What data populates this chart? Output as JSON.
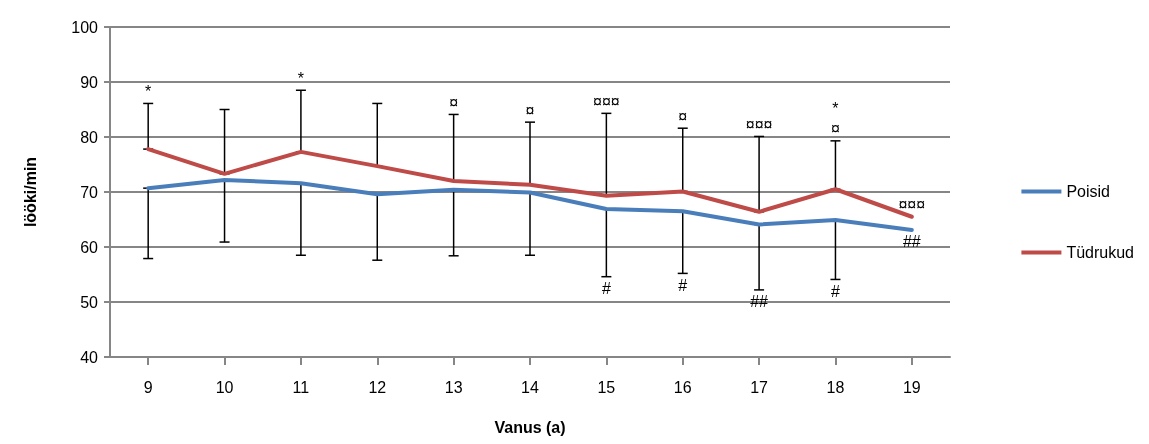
{
  "chart_data": {
    "type": "line",
    "xlabel": "Vanus (a)",
    "ylabel": "lööki/min",
    "categories": [
      "9",
      "10",
      "11",
      "12",
      "13",
      "14",
      "15",
      "16",
      "17",
      "18",
      "19"
    ],
    "series": [
      {
        "name": "Poisid",
        "color": "#4a7ebb",
        "values": [
          70.7,
          72.2,
          71.6,
          69.6,
          70.4,
          69.9,
          66.9,
          66.5,
          64.1,
          64.9,
          63.1
        ],
        "errors": [
          [
            57.9,
            70.7
          ],
          [
            60.9,
            72.2
          ],
          [
            58.5,
            71.6
          ],
          [
            57.6,
            69.6
          ],
          [
            58.4,
            70.4
          ],
          [
            58.5,
            69.9
          ],
          [
            54.6,
            66.9
          ],
          [
            55.2,
            66.5
          ],
          [
            52.2,
            64.1
          ],
          [
            54.1,
            64.9
          ],
          null
        ]
      },
      {
        "name": "Tüdrukud",
        "color": "#be4b48",
        "values": [
          77.8,
          73.3,
          77.3,
          74.7,
          72.0,
          71.3,
          69.3,
          70.1,
          66.4,
          70.5,
          65.5
        ],
        "errors": [
          [
            77.8,
            86.1
          ],
          [
            73.3,
            85.0
          ],
          [
            77.3,
            88.5
          ],
          [
            74.7,
            86.1
          ],
          [
            72.0,
            84.1
          ],
          [
            71.3,
            82.7
          ],
          [
            69.3,
            84.3
          ],
          [
            70.1,
            81.6
          ],
          [
            66.4,
            80.1
          ],
          [
            70.5,
            79.3
          ],
          null
        ]
      }
    ],
    "ylim": [
      40,
      100
    ],
    "yticks": [
      40,
      50,
      60,
      70,
      80,
      90,
      100
    ],
    "grid": "y",
    "legend": "right",
    "marker": "none",
    "line_style": "solid",
    "annotations": [
      {
        "text": "*",
        "x": "9",
        "y": 86.1
      },
      {
        "text": "*",
        "x": "11",
        "y": 88.5
      },
      {
        "text": "¤",
        "x": "13",
        "y": 84.1
      },
      {
        "text": "¤",
        "x": "14",
        "y": 82.7
      },
      {
        "text": "¤¤¤",
        "x": "15",
        "y": 84.3
      },
      {
        "text": "¤",
        "x": "16",
        "y": 81.6
      },
      {
        "text": "¤¤¤",
        "x": "17",
        "y": 80.1
      },
      {
        "text": "¤",
        "x": "18",
        "y": 79.3
      },
      {
        "text": "*",
        "x": "18",
        "y": 79.3
      },
      {
        "text": "¤¤¤",
        "x": "19",
        "y": 65.5
      },
      {
        "text": "#",
        "x": "15",
        "y": 54.6
      },
      {
        "text": "#",
        "x": "16",
        "y": 55.2
      },
      {
        "text": "##",
        "x": "17",
        "y": 52.2
      },
      {
        "text": "#",
        "x": "18",
        "y": 54.1
      },
      {
        "text": "##",
        "x": "19",
        "y": 63.1
      }
    ]
  }
}
